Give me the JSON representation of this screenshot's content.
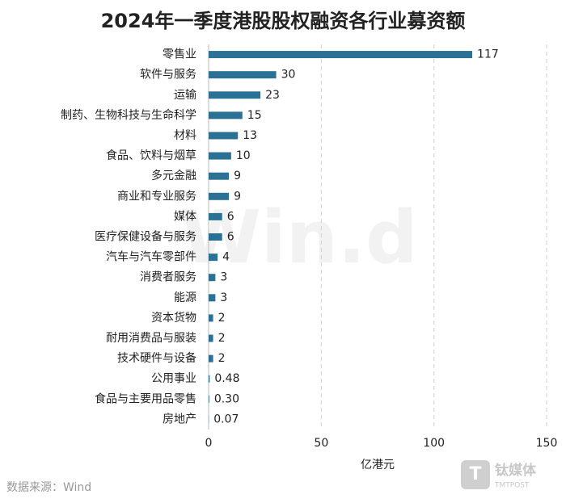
{
  "chart_data": {
    "type": "bar",
    "orientation": "horizontal",
    "title": "2024年一季度港股股权融资各行业募资额",
    "categories": [
      "零售业",
      "软件与服务",
      "运输",
      "制药、生物科技与生命科学",
      "材料",
      "食品、饮料与烟草",
      "多元金融",
      "商业和专业服务",
      "媒体",
      "医疗保健设备与服务",
      "汽车与汽车零部件",
      "消费者服务",
      "能源",
      "资本货物",
      "耐用消费品与服装",
      "技术硬件与设备",
      "公用事业",
      "食品与主要用品零售",
      "房地产"
    ],
    "values": [
      117,
      30,
      23,
      15,
      13,
      10,
      9,
      9,
      6,
      6,
      4,
      3,
      3,
      2,
      2,
      2,
      0.48,
      0.3,
      0.07
    ],
    "value_labels": [
      "117",
      "30",
      "23",
      "15",
      "13",
      "10",
      "9",
      "9",
      "6",
      "6",
      "4",
      "3",
      "3",
      "2",
      "2",
      "2",
      "0.48",
      "0.30",
      "0.07"
    ],
    "color": "#2b7196",
    "x_label": "亿港元",
    "xlim": [
      0,
      150
    ],
    "xticks": [
      0,
      50,
      100,
      150
    ],
    "grid": true,
    "source": "数据来源：Wind",
    "watermark": "Win.d",
    "logo": "钛媒体",
    "logo_sub": "TMTPOST"
  }
}
